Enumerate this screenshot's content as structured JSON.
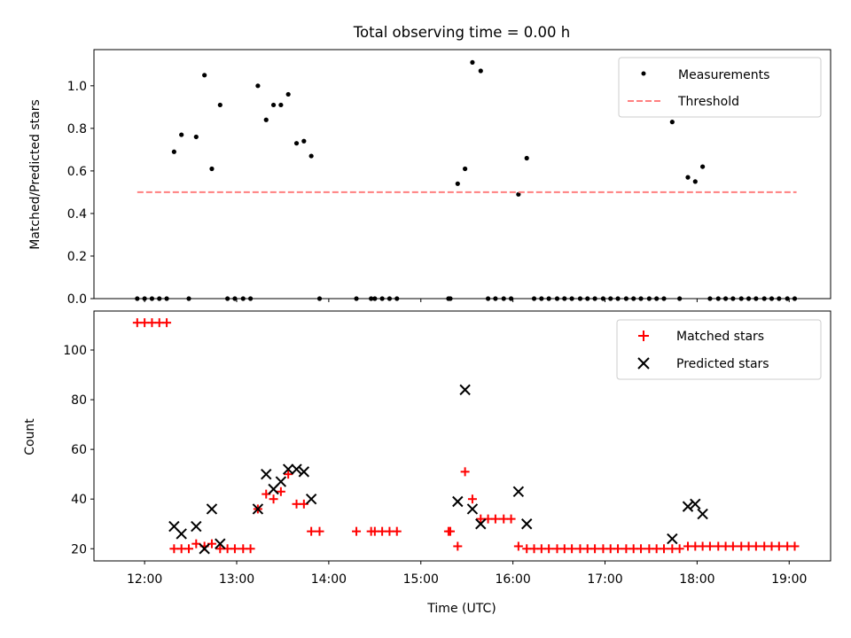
{
  "figure_title": "Total observing time = 0.00 h",
  "chart_data": [
    {
      "type": "scatter",
      "ylabel": "Matched/Predicted stars",
      "xlim": [
        11.45,
        19.45
      ],
      "ylim": [
        0,
        1.17
      ],
      "yticks": [
        {
          "value": 0.0,
          "label": "0.0"
        },
        {
          "value": 0.2,
          "label": "0.2"
        },
        {
          "value": 0.4,
          "label": "0.4"
        },
        {
          "value": 0.6,
          "label": "0.6"
        },
        {
          "value": 0.8,
          "label": "0.8"
        },
        {
          "value": 1.0,
          "label": "1.0"
        }
      ],
      "legend_position": "top-right",
      "series": [
        {
          "name": "Measurements",
          "kind": "scatter",
          "marker": "dot",
          "color": "#000000",
          "points": [
            [
              11.92,
              0
            ],
            [
              12.0,
              0
            ],
            [
              12.08,
              0
            ],
            [
              12.16,
              0
            ],
            [
              12.24,
              0
            ],
            [
              12.32,
              0.69
            ],
            [
              12.4,
              0.77
            ],
            [
              12.48,
              0
            ],
            [
              12.56,
              0.76
            ],
            [
              12.65,
              1.05
            ],
            [
              12.73,
              0.61
            ],
            [
              12.82,
              0.91
            ],
            [
              12.9,
              0
            ],
            [
              12.98,
              0
            ],
            [
              13.07,
              0
            ],
            [
              13.15,
              0
            ],
            [
              13.23,
              1.0
            ],
            [
              13.32,
              0.84
            ],
            [
              13.4,
              0.91
            ],
            [
              13.48,
              0.91
            ],
            [
              13.56,
              0.96
            ],
            [
              13.65,
              0.73
            ],
            [
              13.73,
              0.74
            ],
            [
              13.81,
              0.67
            ],
            [
              13.9,
              0
            ],
            [
              14.3,
              0
            ],
            [
              14.46,
              0
            ],
            [
              14.5,
              0
            ],
            [
              14.58,
              0
            ],
            [
              14.66,
              0
            ],
            [
              14.74,
              0
            ],
            [
              15.3,
              0
            ],
            [
              15.32,
              0
            ],
            [
              15.4,
              0.54
            ],
            [
              15.48,
              0.61
            ],
            [
              15.56,
              1.11
            ],
            [
              15.65,
              1.07
            ],
            [
              15.73,
              0
            ],
            [
              15.81,
              0
            ],
            [
              15.9,
              0
            ],
            [
              15.98,
              0
            ],
            [
              16.06,
              0.49
            ],
            [
              16.15,
              0.66
            ],
            [
              16.23,
              0
            ],
            [
              16.31,
              0
            ],
            [
              16.39,
              0
            ],
            [
              16.48,
              0
            ],
            [
              16.56,
              0
            ],
            [
              16.64,
              0
            ],
            [
              16.73,
              0
            ],
            [
              16.81,
              0
            ],
            [
              16.89,
              0
            ],
            [
              16.98,
              0
            ],
            [
              17.06,
              0
            ],
            [
              17.14,
              0
            ],
            [
              17.23,
              0
            ],
            [
              17.31,
              0
            ],
            [
              17.39,
              0
            ],
            [
              17.48,
              0
            ],
            [
              17.56,
              0
            ],
            [
              17.64,
              0
            ],
            [
              17.73,
              0.83
            ],
            [
              17.81,
              0
            ],
            [
              17.9,
              0.57
            ],
            [
              17.98,
              0.55
            ],
            [
              18.06,
              0.62
            ],
            [
              18.14,
              0
            ],
            [
              18.23,
              0
            ],
            [
              18.31,
              0
            ],
            [
              18.39,
              0
            ],
            [
              18.48,
              0
            ],
            [
              18.56,
              0
            ],
            [
              18.64,
              0
            ],
            [
              18.73,
              0
            ],
            [
              18.81,
              0
            ],
            [
              18.89,
              0
            ],
            [
              18.98,
              0
            ],
            [
              19.06,
              0
            ]
          ]
        },
        {
          "name": "Threshold",
          "kind": "line",
          "style": "dashed",
          "color": "#ff7f7f",
          "points": [
            [
              11.92,
              0.5
            ],
            [
              19.08,
              0.5
            ]
          ]
        }
      ]
    },
    {
      "type": "scatter",
      "xlabel": "Time (UTC)",
      "ylabel": "Count",
      "xlim": [
        11.45,
        19.45
      ],
      "ylim": [
        15.1,
        115.7
      ],
      "xticks": [
        {
          "value": 12,
          "label": "12:00"
        },
        {
          "value": 13,
          "label": "13:00"
        },
        {
          "value": 14,
          "label": "14:00"
        },
        {
          "value": 15,
          "label": "15:00"
        },
        {
          "value": 16,
          "label": "16:00"
        },
        {
          "value": 17,
          "label": "17:00"
        },
        {
          "value": 18,
          "label": "18:00"
        },
        {
          "value": 19,
          "label": "19:00"
        }
      ],
      "yticks": [
        {
          "value": 20,
          "label": "20"
        },
        {
          "value": 40,
          "label": "40"
        },
        {
          "value": 60,
          "label": "60"
        },
        {
          "value": 80,
          "label": "80"
        },
        {
          "value": 100,
          "label": "100"
        }
      ],
      "legend_position": "top-right",
      "series": [
        {
          "name": "Matched stars",
          "kind": "scatter",
          "marker": "plus",
          "color": "#ff0000",
          "points": [
            [
              11.92,
              111
            ],
            [
              12.0,
              111
            ],
            [
              12.08,
              111
            ],
            [
              12.16,
              111
            ],
            [
              12.24,
              111
            ],
            [
              12.32,
              20
            ],
            [
              12.4,
              20
            ],
            [
              12.48,
              20
            ],
            [
              12.56,
              22
            ],
            [
              12.65,
              21
            ],
            [
              12.73,
              22
            ],
            [
              12.82,
              20
            ],
            [
              12.9,
              20
            ],
            [
              12.98,
              20
            ],
            [
              13.07,
              20
            ],
            [
              13.15,
              20
            ],
            [
              13.23,
              36
            ],
            [
              13.32,
              42
            ],
            [
              13.4,
              40
            ],
            [
              13.48,
              43
            ],
            [
              13.56,
              50
            ],
            [
              13.65,
              38
            ],
            [
              13.73,
              38
            ],
            [
              13.81,
              27
            ],
            [
              13.9,
              27
            ],
            [
              14.3,
              27
            ],
            [
              14.46,
              27
            ],
            [
              14.5,
              27
            ],
            [
              14.58,
              27
            ],
            [
              14.66,
              27
            ],
            [
              14.74,
              27
            ],
            [
              15.3,
              27
            ],
            [
              15.32,
              27
            ],
            [
              15.4,
              21
            ],
            [
              15.48,
              51
            ],
            [
              15.56,
              40
            ],
            [
              15.65,
              32
            ],
            [
              15.73,
              32
            ],
            [
              15.81,
              32
            ],
            [
              15.9,
              32
            ],
            [
              15.98,
              32
            ],
            [
              16.06,
              21
            ],
            [
              16.15,
              20
            ],
            [
              16.23,
              20
            ],
            [
              16.31,
              20
            ],
            [
              16.39,
              20
            ],
            [
              16.48,
              20
            ],
            [
              16.56,
              20
            ],
            [
              16.64,
              20
            ],
            [
              16.73,
              20
            ],
            [
              16.81,
              20
            ],
            [
              16.89,
              20
            ],
            [
              16.98,
              20
            ],
            [
              17.06,
              20
            ],
            [
              17.14,
              20
            ],
            [
              17.23,
              20
            ],
            [
              17.31,
              20
            ],
            [
              17.39,
              20
            ],
            [
              17.48,
              20
            ],
            [
              17.56,
              20
            ],
            [
              17.64,
              20
            ],
            [
              17.73,
              20
            ],
            [
              17.81,
              20
            ],
            [
              17.9,
              21
            ],
            [
              17.98,
              21
            ],
            [
              18.06,
              21
            ],
            [
              18.14,
              21
            ],
            [
              18.23,
              21
            ],
            [
              18.31,
              21
            ],
            [
              18.39,
              21
            ],
            [
              18.48,
              21
            ],
            [
              18.56,
              21
            ],
            [
              18.64,
              21
            ],
            [
              18.73,
              21
            ],
            [
              18.81,
              21
            ],
            [
              18.89,
              21
            ],
            [
              18.98,
              21
            ],
            [
              19.06,
              21
            ]
          ]
        },
        {
          "name": "Predicted stars",
          "kind": "scatter",
          "marker": "x",
          "color": "#000000",
          "points": [
            [
              12.32,
              29
            ],
            [
              12.4,
              26
            ],
            [
              12.56,
              29
            ],
            [
              12.65,
              20
            ],
            [
              12.73,
              36
            ],
            [
              12.82,
              22
            ],
            [
              13.23,
              36
            ],
            [
              13.32,
              50
            ],
            [
              13.4,
              44
            ],
            [
              13.48,
              47
            ],
            [
              13.56,
              52
            ],
            [
              13.65,
              52
            ],
            [
              13.73,
              51
            ],
            [
              13.81,
              40
            ],
            [
              15.4,
              39
            ],
            [
              15.48,
              84
            ],
            [
              15.56,
              36
            ],
            [
              15.65,
              30
            ],
            [
              16.06,
              43
            ],
            [
              16.15,
              30
            ],
            [
              17.73,
              24
            ],
            [
              17.9,
              37
            ],
            [
              17.98,
              38
            ],
            [
              18.06,
              34
            ]
          ]
        }
      ]
    }
  ]
}
